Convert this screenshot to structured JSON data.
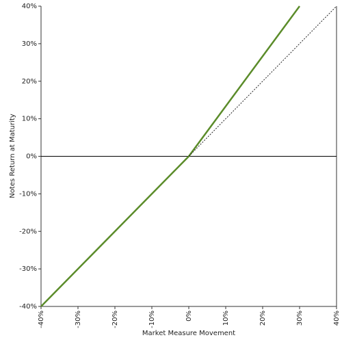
{
  "chart_data": {
    "type": "line",
    "xlabel": "Market Measure Movement",
    "ylabel": "Notes Return at Maturity",
    "xlim": [
      -40,
      40
    ],
    "ylim": [
      -40,
      40
    ],
    "xticks": [
      {
        "value": -40,
        "label": "-40%"
      },
      {
        "value": -30,
        "label": "-30%"
      },
      {
        "value": -20,
        "label": "-20%"
      },
      {
        "value": -10,
        "label": "-10%"
      },
      {
        "value": 0,
        "label": "0%"
      },
      {
        "value": 10,
        "label": "10%"
      },
      {
        "value": 20,
        "label": "20%"
      },
      {
        "value": 30,
        "label": "30%"
      },
      {
        "value": 40,
        "label": "40%"
      }
    ],
    "yticks": [
      {
        "value": -40,
        "label": "-40%"
      },
      {
        "value": -30,
        "label": "-30%"
      },
      {
        "value": -20,
        "label": "-20%"
      },
      {
        "value": -10,
        "label": "-10%"
      },
      {
        "value": 0,
        "label": "0%"
      },
      {
        "value": 10,
        "label": "10%"
      },
      {
        "value": 20,
        "label": "20%"
      },
      {
        "value": 30,
        "label": "30%"
      },
      {
        "value": 40,
        "label": "40%"
      }
    ],
    "zero_line": true,
    "series": [
      {
        "color": "#5b8c2a",
        "dashed": false,
        "x": [
          -40,
          0,
          30
        ],
        "values": [
          -40,
          0,
          40
        ]
      },
      {
        "color": "#222222",
        "dashed": true,
        "x": [
          0,
          40
        ],
        "values": [
          0,
          40
        ]
      }
    ]
  }
}
